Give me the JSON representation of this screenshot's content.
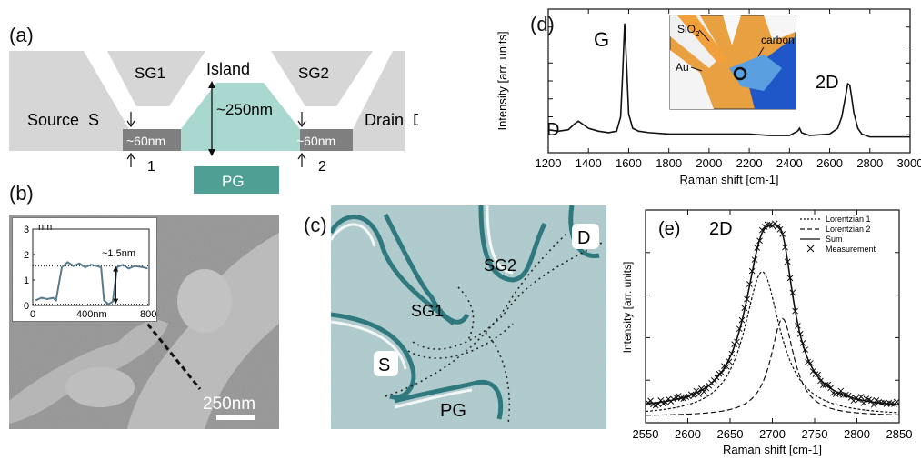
{
  "panels": {
    "a": {
      "label": "(a)",
      "sg1": "SG1",
      "sg2": "SG2",
      "island": "Island",
      "source": "Source  S",
      "drain": "Drain  D",
      "width_left": "~60nm",
      "width_right": "~60nm",
      "island_size": "~250nm",
      "pg": "PG",
      "arrow1": "1",
      "arrow2": "2"
    },
    "b": {
      "label": "(b)",
      "scalebar": "250nm",
      "inset_ylabel": "nm",
      "inset_step": "~1.5nm",
      "inset_yticks": [
        "0",
        "1",
        "2",
        "3"
      ],
      "inset_xticks": [
        "0",
        "400nm",
        "800"
      ]
    },
    "c": {
      "label": "(c)",
      "s": "S",
      "d": "D",
      "sg1": "SG1",
      "sg2": "SG2",
      "pg": "PG"
    },
    "d": {
      "label": "(d)",
      "peak_d": "D",
      "peak_g": "G",
      "peak_2d": "2D",
      "inset_sio2": "SiO",
      "inset_sio2_sub": "2",
      "inset_au": "Au",
      "inset_carbon": "carbon"
    },
    "e": {
      "label": "(e)",
      "title": "2D"
    }
  },
  "colors": {
    "gray_gate": "#d6d6d6",
    "constriction": "#7f7f7f",
    "island": "#a9d8d0",
    "pg": "#4f9f95",
    "afm_bg": "#8f8f8f",
    "afm_flake": "#b9b9b9",
    "c_bg": "#a9c6c8",
    "c_edge": "#1b6c72",
    "inset_line": "#587b8e"
  },
  "chart_data": [
    {
      "panel": "d",
      "type": "line",
      "xlabel": "Raman shift [cm-1]",
      "ylabel": "Intensity [arr. units]",
      "xlim": [
        1200,
        3000
      ],
      "xticks": [
        "1200",
        "1400",
        "1600",
        "1800",
        "2000",
        "2200",
        "2400",
        "2600",
        "2800",
        "3000"
      ],
      "series": [
        {
          "x": [
            1200,
            1250,
            1300,
            1330,
            1350,
            1370,
            1400,
            1450,
            1500,
            1540,
            1560,
            1570,
            1580,
            1590,
            1600,
            1620,
            1650,
            1700,
            1800,
            1900,
            2000,
            2100,
            2200,
            2300,
            2400,
            2440,
            2450,
            2460,
            2500,
            2600,
            2640,
            2660,
            2680,
            2690,
            2700,
            2710,
            2720,
            2740,
            2760,
            2800,
            2900,
            3000
          ],
          "y": [
            0.16,
            0.15,
            0.16,
            0.2,
            0.22,
            0.2,
            0.17,
            0.15,
            0.14,
            0.15,
            0.25,
            0.55,
            0.9,
            0.6,
            0.27,
            0.17,
            0.15,
            0.14,
            0.13,
            0.13,
            0.13,
            0.13,
            0.13,
            0.12,
            0.12,
            0.15,
            0.17,
            0.14,
            0.12,
            0.13,
            0.17,
            0.25,
            0.4,
            0.48,
            0.47,
            0.38,
            0.28,
            0.17,
            0.13,
            0.11,
            0.11,
            0.11
          ]
        }
      ]
    },
    {
      "panel": "e",
      "type": "line",
      "xlabel": "Raman shift [cm-1]",
      "ylabel": "Intensity [arr. units]",
      "xlim": [
        2550,
        2850
      ],
      "xticks": [
        "2550",
        "2600",
        "2650",
        "2700",
        "2750",
        "2800",
        "2850"
      ],
      "legend": [
        "Lorentzian 1",
        "Lorentzian 2",
        "Sum",
        "Measurement"
      ],
      "legend_position": "top-right",
      "lorentzians": [
        {
          "name": "Lorentzian 1",
          "center": 2688,
          "amplitude": 0.68,
          "hwhm": 26
        },
        {
          "name": "Lorentzian 2",
          "center": 2712,
          "amplitude": 0.46,
          "hwhm": 17
        }
      ],
      "baseline": 0.06
    }
  ]
}
